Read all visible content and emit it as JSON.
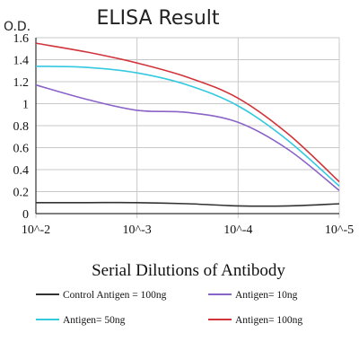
{
  "chart_data": {
    "type": "line",
    "title": "ELISA Result",
    "ylabel": "O.D.",
    "xlabel": "Serial Dilutions of Antibody",
    "x_categories": [
      "10^-2",
      "10^-3",
      "10^-4",
      "10^-5"
    ],
    "x_positions": [
      0,
      1,
      2,
      3
    ],
    "ylim": [
      0,
      1.6
    ],
    "y_ticks": [
      0,
      0.2,
      0.4,
      0.6,
      0.8,
      1,
      1.2,
      1.4,
      1.6
    ],
    "y_tick_labels": [
      "0",
      "0.2",
      "0.4",
      "0.6",
      "0.8",
      "1",
      "1.2",
      "1.4",
      "1.6"
    ],
    "grid": true,
    "legend_position": "bottom",
    "series": [
      {
        "name": "Control Antigen = 100ng",
        "color": "#333333",
        "x": [
          0,
          0.5,
          1,
          1.5,
          2,
          2.5,
          3
        ],
        "y": [
          0.1,
          0.1,
          0.1,
          0.09,
          0.07,
          0.07,
          0.09
        ]
      },
      {
        "name": "Antigen= 10ng",
        "color": "#8a63c8",
        "x": [
          0,
          0.5,
          1,
          1.5,
          2,
          2.5,
          3
        ],
        "y": [
          1.17,
          1.04,
          0.94,
          0.92,
          0.83,
          0.58,
          0.21
        ]
      },
      {
        "name": "Antigen= 50ng",
        "color": "#33c9e0",
        "x": [
          0,
          0.5,
          1,
          1.5,
          2,
          2.5,
          3
        ],
        "y": [
          1.34,
          1.33,
          1.28,
          1.17,
          0.98,
          0.66,
          0.25
        ]
      },
      {
        "name": "Antigen= 100ng",
        "color": "#d2333a",
        "x": [
          0,
          0.5,
          1,
          1.5,
          2,
          2.5,
          3
        ],
        "y": [
          1.55,
          1.47,
          1.37,
          1.24,
          1.05,
          0.72,
          0.29
        ]
      }
    ]
  }
}
